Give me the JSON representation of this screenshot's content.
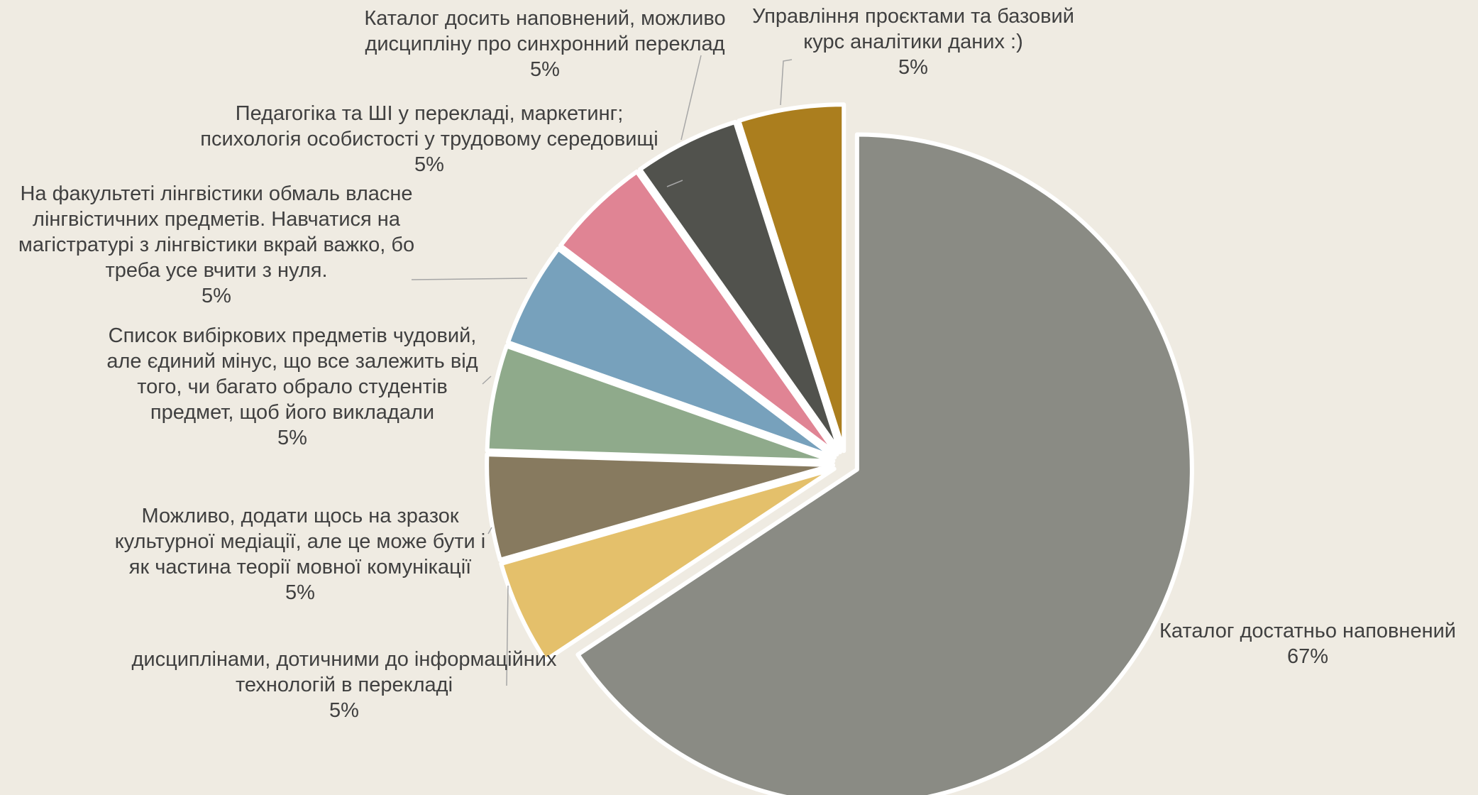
{
  "chart_data": {
    "type": "pie",
    "title": "",
    "background": "#EFEBE2",
    "slices": [
      {
        "label": "Каталог достатньо наповнений",
        "value": 67,
        "value_label": "67%",
        "color": "#8A8B84"
      },
      {
        "label": "дисциплінами, дотичними до інформаційних технологій в перекладі",
        "value": 5,
        "value_label": "5%",
        "color": "#E4C06B"
      },
      {
        "label": "Можливо, додати щось на зразок культурної медіації, але це може бути і як частина теорії мовної комунікації",
        "value": 5,
        "value_label": "5%",
        "color": "#877A5F"
      },
      {
        "label": "Список вибіркових предметів чудовий, але єдиний мінус, що все залежить від того, чи багато обрало студентів предмет, щоб його викладали",
        "value": 5,
        "value_label": "5%",
        "color": "#8FAA8B"
      },
      {
        "label": "На факультеті лінгвістики обмаль власне лінгвістичних предметів. Навчатися на магістратурі з лінгвістики вкрай важко, бо треба усе вчити з нуля.",
        "value": 5,
        "value_label": "5%",
        "color": "#77A1BC"
      },
      {
        "label": "Педагогіка та ШІ у перекладі, маркетинг; психологія особистості у трудовому середовищі",
        "value": 5,
        "value_label": "5%",
        "color": "#E08494"
      },
      {
        "label": "Каталог досить наповнений, можливо дисципліну про синхронний переклад",
        "value": 5,
        "value_label": "5%",
        "color": "#51524D"
      },
      {
        "label": "Управління проєктами та базовий курс аналітики даних :)",
        "value": 5,
        "value_label": "5%",
        "color": "#AB7E1E"
      }
    ],
    "label_lines": [
      [
        "Каталог достатньо наповнений"
      ],
      [
        "дисциплінами, дотичними до інформаційних",
        "технологій в перекладі"
      ],
      [
        "Можливо, додати щось на зразок",
        "культурної медіації, але це може бути і",
        "як частина теорії мовної комунікації"
      ],
      [
        "Список вибіркових предметів чудовий,",
        "але єдиний мінус, що все залежить від",
        "того, чи багато обрало студентів",
        "предмет, щоб його викладали"
      ],
      [
        "На факультеті лінгвістики обмаль власне",
        "лінгвістичних предметів. Навчатися на",
        "магістратурі з лінгвістики вкрай важко, бо",
        "треба усе вчити з нуля."
      ],
      [
        "Педагогіка та ШІ у перекладі, маркетинг;",
        "психологія особистості у трудовому середовищі"
      ],
      [
        "Каталог досить наповнений, можливо",
        "дисципліну про синхронний переклад"
      ],
      [
        "Управління проєктами та базовий",
        "курс аналітики даних :)"
      ]
    ],
    "legend": "none",
    "start_angle": "12 o'clock, clockwise"
  }
}
